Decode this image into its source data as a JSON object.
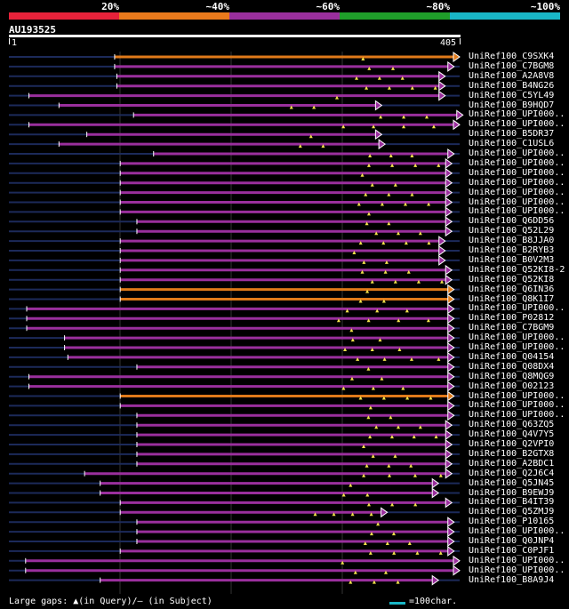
{
  "legend": {
    "colors": [
      "#e6223a",
      "#ea7a1c",
      "#9a2f9d",
      "#1f9e2a",
      "#19b6c6"
    ],
    "labels": [
      "20%",
      "~40%",
      "~60%",
      "~80%",
      "~100%"
    ]
  },
  "query": {
    "id": "AU193525",
    "length": 405,
    "start_label": "1",
    "end_label": "405"
  },
  "hits": [
    {
      "name": "UniRef100_C9SXK4",
      "color": "orange",
      "start": 95,
      "end": 405
    },
    {
      "name": "UniRef100_C7BGM8",
      "color": "purple",
      "start": 95,
      "end": 400
    },
    {
      "name": "UniRef100_A2A8V8",
      "color": "purple",
      "start": 97,
      "end": 392
    },
    {
      "name": "UniRef100_B4NG26",
      "color": "purple",
      "start": 97,
      "end": 392
    },
    {
      "name": "UniRef100_C5YL49",
      "color": "purple",
      "start": 18,
      "end": 392
    },
    {
      "name": "UniRef100_B9HQD7",
      "color": "purple",
      "start": 45,
      "end": 335
    },
    {
      "name": "UniRef100_UPI000..",
      "color": "purple",
      "start": 112,
      "end": 408
    },
    {
      "name": "UniRef100_UPI000..",
      "color": "purple",
      "start": 18,
      "end": 405
    },
    {
      "name": "UniRef100_B5DR37",
      "color": "purple",
      "start": 70,
      "end": 335
    },
    {
      "name": "UniRef100_C1USL6",
      "color": "purple",
      "start": 45,
      "end": 338
    },
    {
      "name": "UniRef100_UPI000..",
      "color": "purple",
      "start": 130,
      "end": 400
    },
    {
      "name": "UniRef100_UPI000..",
      "color": "purple",
      "start": 100,
      "end": 398
    },
    {
      "name": "UniRef100_UPI000..",
      "color": "purple",
      "start": 100,
      "end": 398
    },
    {
      "name": "UniRef100_UPI000..",
      "color": "purple",
      "start": 100,
      "end": 398
    },
    {
      "name": "UniRef100_UPI000..",
      "color": "purple",
      "start": 100,
      "end": 398
    },
    {
      "name": "UniRef100_UPI000..",
      "color": "purple",
      "start": 100,
      "end": 398
    },
    {
      "name": "UniRef100_UPI000..",
      "color": "purple",
      "start": 100,
      "end": 398
    },
    {
      "name": "UniRef100_Q6DD56",
      "color": "purple",
      "start": 115,
      "end": 398
    },
    {
      "name": "UniRef100_Q52L29",
      "color": "purple",
      "start": 115,
      "end": 398
    },
    {
      "name": "UniRef100_B8JJA0",
      "color": "purple",
      "start": 100,
      "end": 392
    },
    {
      "name": "UniRef100_B2RYB3",
      "color": "purple",
      "start": 100,
      "end": 392
    },
    {
      "name": "UniRef100_B0V2M3",
      "color": "purple",
      "start": 100,
      "end": 392
    },
    {
      "name": "UniRef100_Q52KI8-2",
      "color": "purple",
      "start": 100,
      "end": 398
    },
    {
      "name": "UniRef100_Q52KI8",
      "color": "purple",
      "start": 100,
      "end": 398
    },
    {
      "name": "UniRef100_Q6IN36",
      "color": "orange",
      "start": 100,
      "end": 400
    },
    {
      "name": "UniRef100_Q8K1I7",
      "color": "orange",
      "start": 100,
      "end": 400
    },
    {
      "name": "UniRef100_UPI000..",
      "color": "purple",
      "start": 16,
      "end": 400
    },
    {
      "name": "UniRef100_P02812",
      "color": "purple",
      "start": 16,
      "end": 400
    },
    {
      "name": "UniRef100_C7BGM9",
      "color": "purple",
      "start": 16,
      "end": 400
    },
    {
      "name": "UniRef100_UPI000..",
      "color": "purple",
      "start": 50,
      "end": 400
    },
    {
      "name": "UniRef100_UPI000..",
      "color": "purple",
      "start": 50,
      "end": 400
    },
    {
      "name": "UniRef100_Q04154",
      "color": "purple",
      "start": 53,
      "end": 400
    },
    {
      "name": "UniRef100_Q08DX4",
      "color": "purple",
      "start": 115,
      "end": 400
    },
    {
      "name": "UniRef100_Q8MQG9",
      "color": "purple",
      "start": 18,
      "end": 400
    },
    {
      "name": "UniRef100_O02123",
      "color": "purple",
      "start": 18,
      "end": 400
    },
    {
      "name": "UniRef100_UPI000..",
      "color": "orange",
      "start": 100,
      "end": 400
    },
    {
      "name": "UniRef100_UPI000..",
      "color": "purple",
      "start": 100,
      "end": 400
    },
    {
      "name": "UniRef100_UPI000..",
      "color": "purple",
      "start": 115,
      "end": 400
    },
    {
      "name": "UniRef100_Q63ZQ5",
      "color": "purple",
      "start": 115,
      "end": 398
    },
    {
      "name": "UniRef100_Q4V7Y5",
      "color": "purple",
      "start": 115,
      "end": 398
    },
    {
      "name": "UniRef100_Q2VPI0",
      "color": "purple",
      "start": 115,
      "end": 398
    },
    {
      "name": "UniRef100_B2GTX8",
      "color": "purple",
      "start": 115,
      "end": 398
    },
    {
      "name": "UniRef100_A2BDC1",
      "color": "purple",
      "start": 115,
      "end": 398
    },
    {
      "name": "UniRef100_Q2J6C4",
      "color": "purple",
      "start": 68,
      "end": 398
    },
    {
      "name": "UniRef100_Q5JN45",
      "color": "purple",
      "start": 82,
      "end": 386
    },
    {
      "name": "UniRef100_B9EWJ9",
      "color": "purple",
      "start": 82,
      "end": 386
    },
    {
      "name": "UniRef100_B4IT39",
      "color": "purple",
      "start": 100,
      "end": 398
    },
    {
      "name": "UniRef100_Q5ZMJ9",
      "color": "purple",
      "start": 100,
      "end": 340
    },
    {
      "name": "UniRef100_P10165",
      "color": "purple",
      "start": 115,
      "end": 400
    },
    {
      "name": "UniRef100_UPI000..",
      "color": "purple",
      "start": 115,
      "end": 400
    },
    {
      "name": "UniRef100_Q0JNP4",
      "color": "purple",
      "start": 115,
      "end": 400
    },
    {
      "name": "UniRef100_C0PJF1",
      "color": "purple",
      "start": 100,
      "end": 400
    },
    {
      "name": "UniRef100_UPI000..",
      "color": "purple",
      "start": 15,
      "end": 405
    },
    {
      "name": "UniRef100_UPI000..",
      "color": "purple",
      "start": 15,
      "end": 405
    },
    {
      "name": "UniRef100_B8A9J4",
      "color": "purple",
      "start": 82,
      "end": 386
    }
  ],
  "footer": {
    "gap_legend": "Large gaps: ▲(in Query)/– (in Subject)",
    "scale_label": "=100char."
  }
}
